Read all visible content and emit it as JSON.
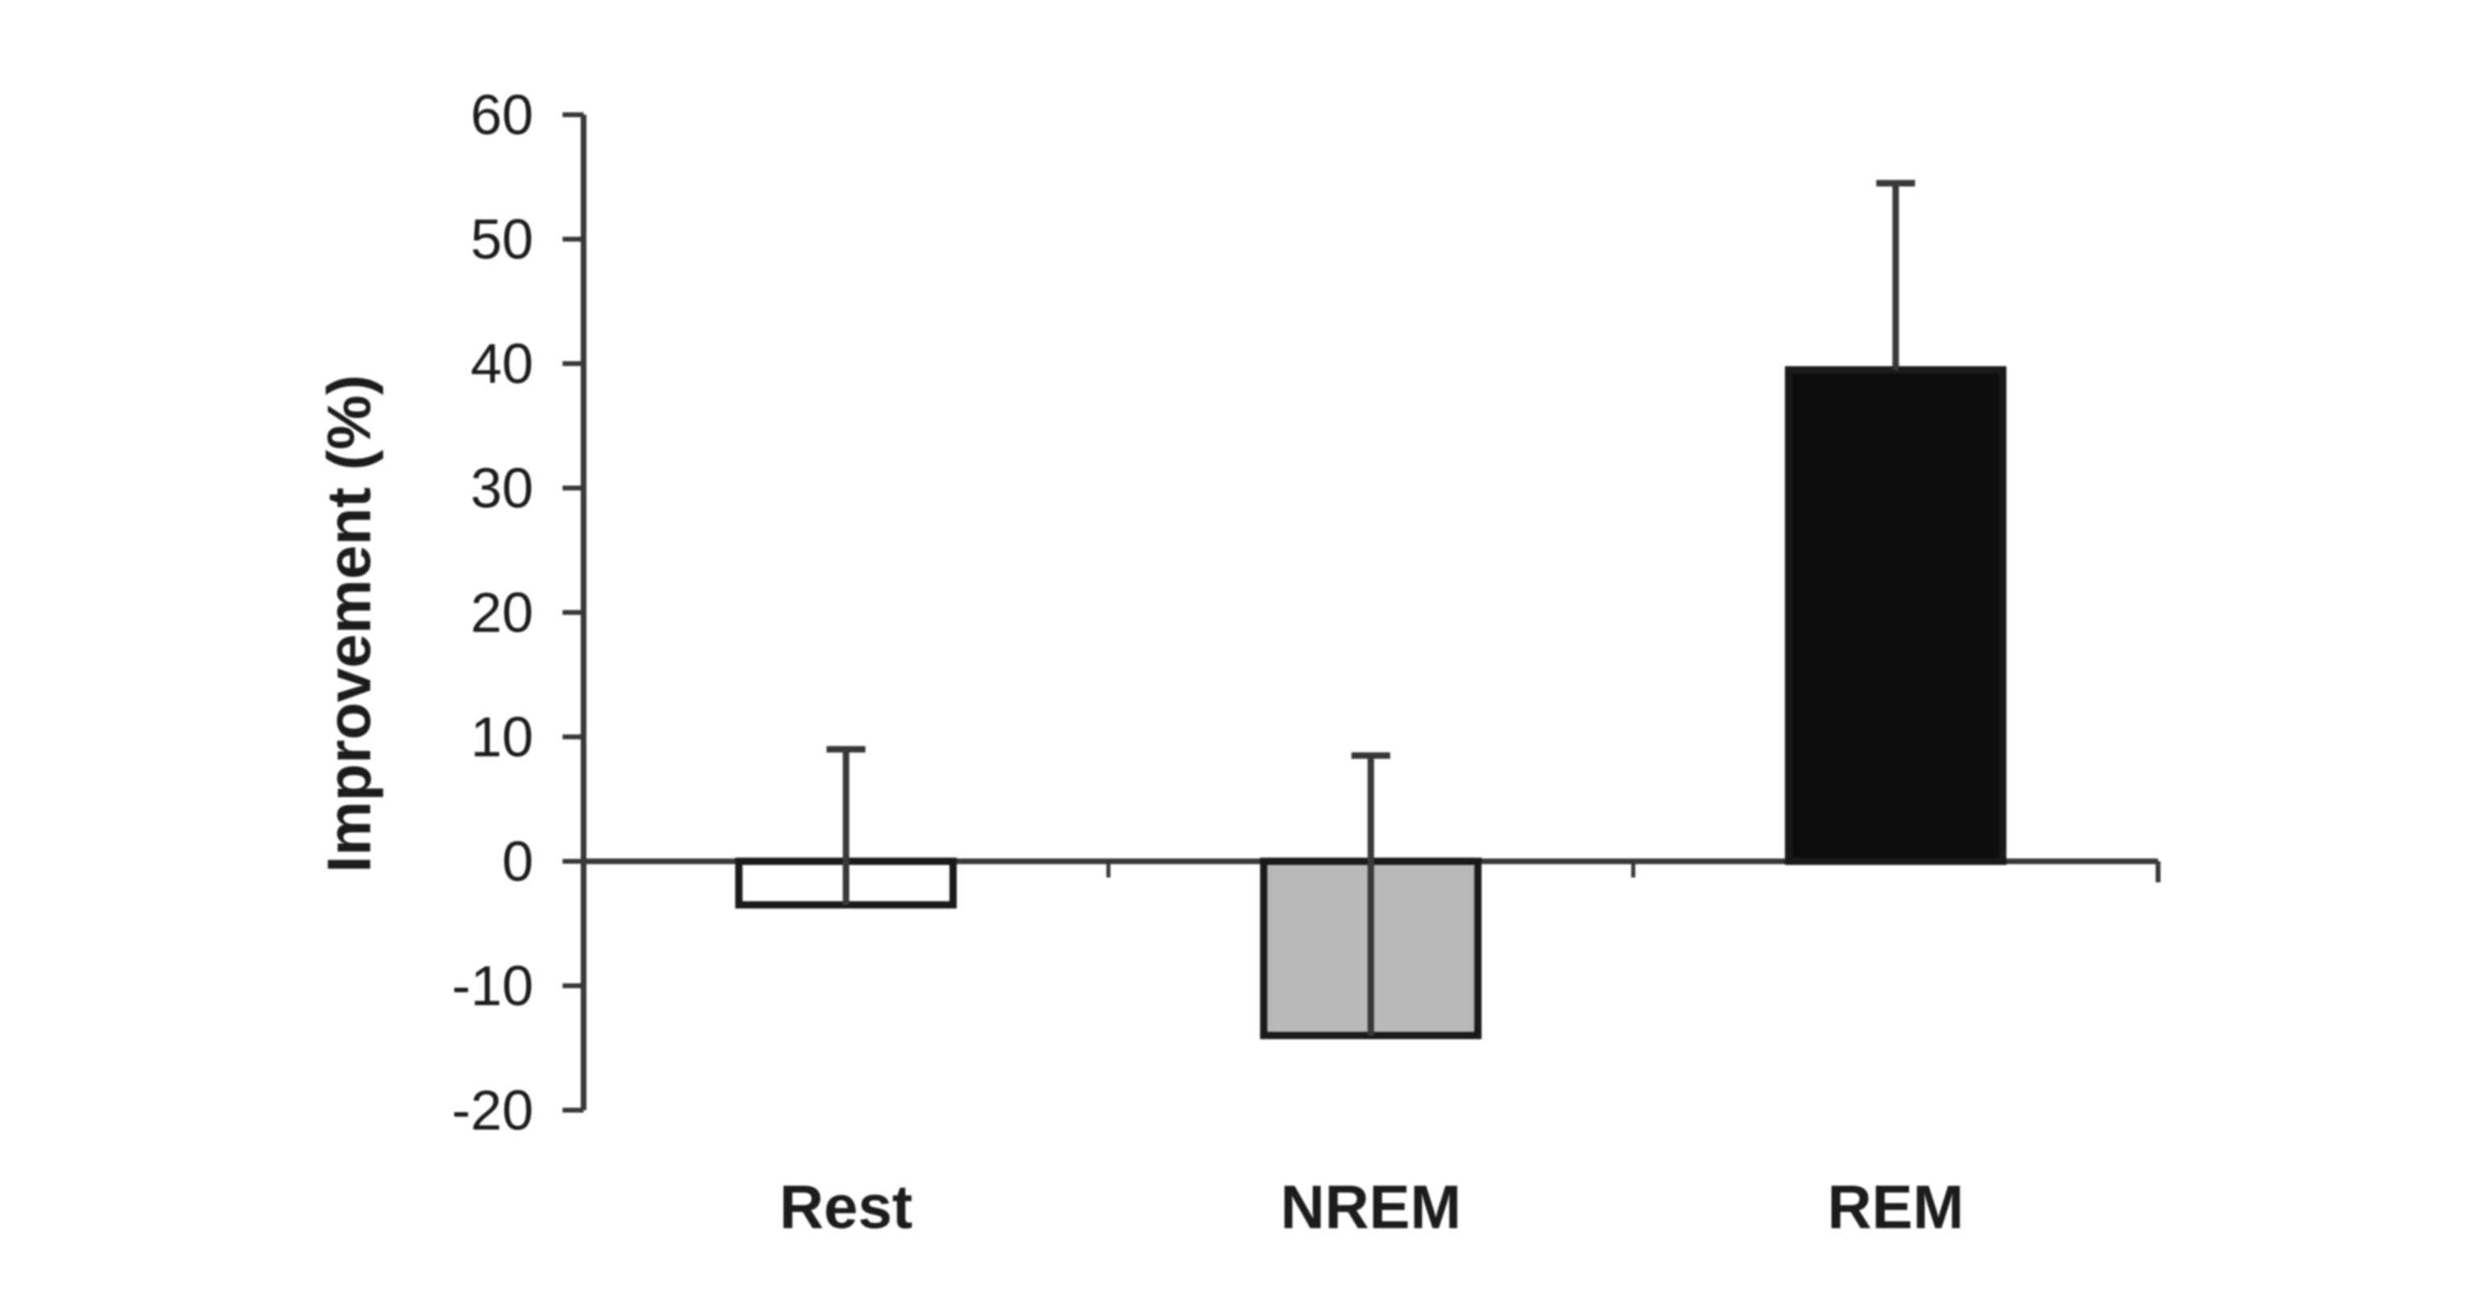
{
  "figure": {
    "background": "#ffffff",
    "description": "Bar chart of perceptual improvement (%) for Rest, NREM and REM groups with upper error bars"
  },
  "chart_data": {
    "type": "bar",
    "title": "",
    "xlabel": "",
    "ylabel": "Improvement (%)",
    "categories": [
      "Rest",
      "NREM",
      "REM"
    ],
    "values": [
      -3.5,
      -14,
      39.5
    ],
    "error_top": [
      9,
      8.5,
      54.5
    ],
    "bar_fills": [
      "#ffffff",
      "#b9b9b9",
      "#0d0d0d"
    ],
    "bar_edge_color": "#1a1a1a",
    "axis_color": "#383838",
    "text_color": "#1c1c1c",
    "ylim": [
      -20,
      60
    ],
    "yticks": [
      60,
      50,
      40,
      30,
      20,
      10,
      0,
      -10,
      -20
    ],
    "grid": false,
    "legend": false,
    "layout_hints": {
      "error_bars": "upper cap only; vertical line runs from cap down through bar to the bar value end",
      "baseline_ticks": "short downward ticks at category boundaries and at right end of baseline",
      "bars_outlined": true
    }
  }
}
